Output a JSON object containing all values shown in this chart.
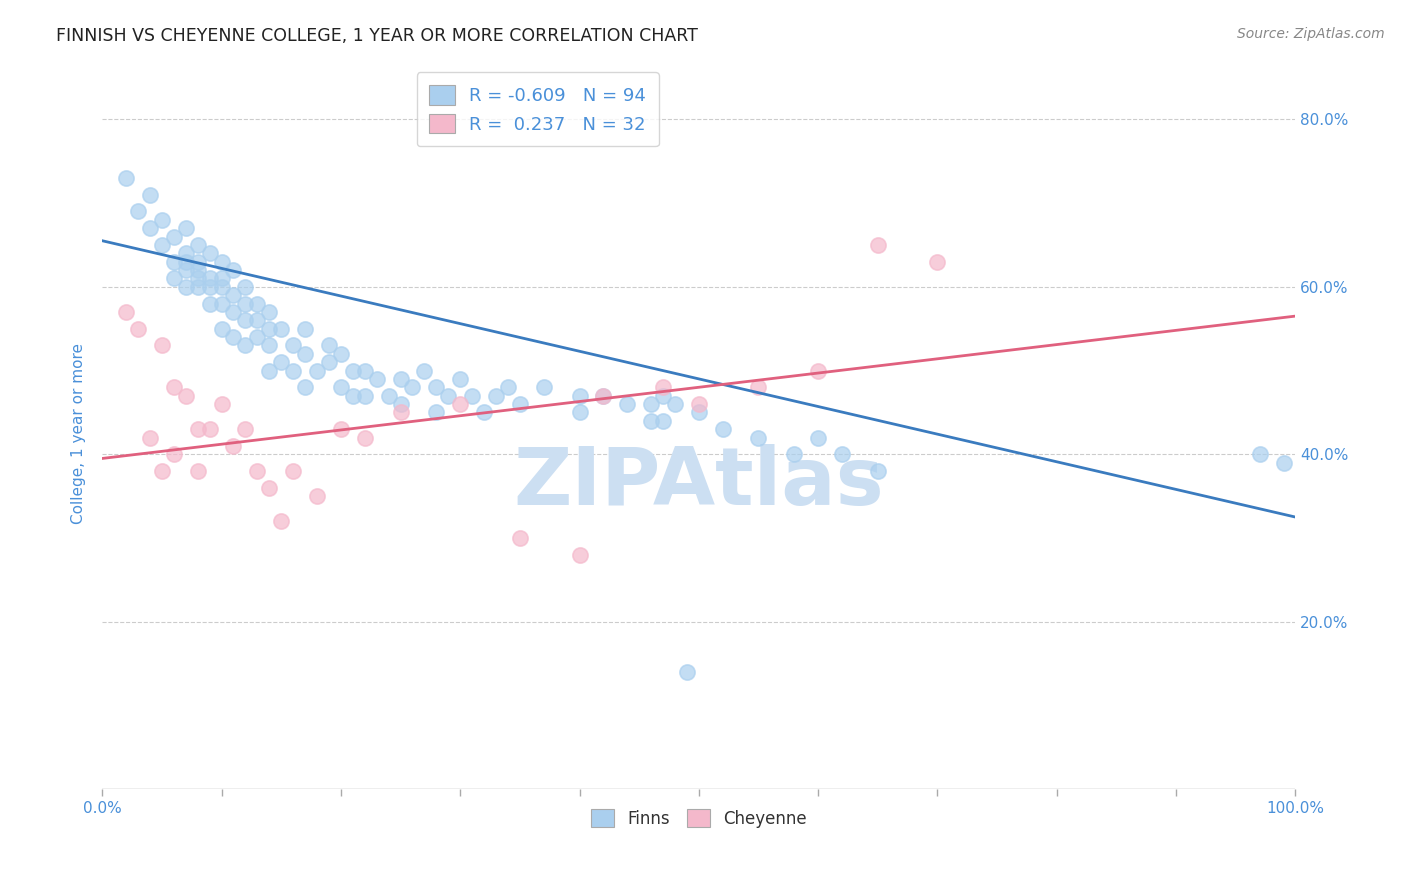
{
  "title": "FINNISH VS CHEYENNE COLLEGE, 1 YEAR OR MORE CORRELATION CHART",
  "source": "Source: ZipAtlas.com",
  "xlabel_ticks": [
    "0.0%",
    "100.0%"
  ],
  "ylabel_ticks": [
    "20.0%",
    "40.0%",
    "60.0%",
    "80.0%"
  ],
  "ylabel": "College, 1 year or more",
  "legend_labels": [
    "Finns",
    "Cheyenne"
  ],
  "finns_R": -0.609,
  "finns_N": 94,
  "cheyenne_R": 0.237,
  "cheyenne_N": 32,
  "finns_color": "#aacfee",
  "cheyenne_color": "#f4b8cb",
  "finns_line_color": "#3a7bbf",
  "cheyenne_line_color": "#e0607e",
  "title_color": "#222222",
  "axis_label_color": "#4a90d9",
  "watermark_color": "#ccdff2",
  "background_color": "#ffffff",
  "grid_color": "#cccccc",
  "finns_x": [
    0.02,
    0.03,
    0.04,
    0.04,
    0.05,
    0.05,
    0.06,
    0.06,
    0.06,
    0.07,
    0.07,
    0.07,
    0.07,
    0.07,
    0.08,
    0.08,
    0.08,
    0.08,
    0.08,
    0.09,
    0.09,
    0.09,
    0.09,
    0.1,
    0.1,
    0.1,
    0.1,
    0.1,
    0.11,
    0.11,
    0.11,
    0.11,
    0.12,
    0.12,
    0.12,
    0.12,
    0.13,
    0.13,
    0.13,
    0.14,
    0.14,
    0.14,
    0.14,
    0.15,
    0.15,
    0.16,
    0.16,
    0.17,
    0.17,
    0.17,
    0.18,
    0.19,
    0.19,
    0.2,
    0.2,
    0.21,
    0.21,
    0.22,
    0.22,
    0.23,
    0.24,
    0.25,
    0.25,
    0.26,
    0.27,
    0.28,
    0.28,
    0.29,
    0.3,
    0.31,
    0.32,
    0.33,
    0.34,
    0.35,
    0.37,
    0.4,
    0.4,
    0.42,
    0.44,
    0.46,
    0.46,
    0.47,
    0.47,
    0.48,
    0.49,
    0.5,
    0.52,
    0.55,
    0.58,
    0.6,
    0.62,
    0.65,
    0.97,
    0.99
  ],
  "finns_y": [
    0.73,
    0.69,
    0.71,
    0.67,
    0.65,
    0.68,
    0.63,
    0.61,
    0.66,
    0.64,
    0.63,
    0.67,
    0.62,
    0.6,
    0.63,
    0.61,
    0.6,
    0.65,
    0.62,
    0.61,
    0.64,
    0.6,
    0.58,
    0.63,
    0.61,
    0.58,
    0.55,
    0.6,
    0.62,
    0.59,
    0.57,
    0.54,
    0.6,
    0.58,
    0.56,
    0.53,
    0.56,
    0.54,
    0.58,
    0.55,
    0.53,
    0.57,
    0.5,
    0.55,
    0.51,
    0.53,
    0.5,
    0.52,
    0.55,
    0.48,
    0.5,
    0.51,
    0.53,
    0.52,
    0.48,
    0.5,
    0.47,
    0.5,
    0.47,
    0.49,
    0.47,
    0.49,
    0.46,
    0.48,
    0.5,
    0.48,
    0.45,
    0.47,
    0.49,
    0.47,
    0.45,
    0.47,
    0.48,
    0.46,
    0.48,
    0.47,
    0.45,
    0.47,
    0.46,
    0.46,
    0.44,
    0.47,
    0.44,
    0.46,
    0.14,
    0.45,
    0.43,
    0.42,
    0.4,
    0.42,
    0.4,
    0.38,
    0.4,
    0.39
  ],
  "cheyenne_x": [
    0.02,
    0.03,
    0.04,
    0.05,
    0.05,
    0.06,
    0.06,
    0.07,
    0.08,
    0.08,
    0.09,
    0.1,
    0.11,
    0.12,
    0.13,
    0.14,
    0.15,
    0.16,
    0.18,
    0.2,
    0.22,
    0.25,
    0.3,
    0.35,
    0.4,
    0.42,
    0.47,
    0.5,
    0.55,
    0.6,
    0.65,
    0.7
  ],
  "cheyenne_y": [
    0.57,
    0.55,
    0.42,
    0.53,
    0.38,
    0.48,
    0.4,
    0.47,
    0.43,
    0.38,
    0.43,
    0.46,
    0.41,
    0.43,
    0.38,
    0.36,
    0.32,
    0.38,
    0.35,
    0.43,
    0.42,
    0.45,
    0.46,
    0.3,
    0.28,
    0.47,
    0.48,
    0.46,
    0.48,
    0.5,
    0.65,
    0.63
  ],
  "xlim": [
    0.0,
    1.0
  ],
  "ylim": [
    0.0,
    0.85
  ],
  "finns_trendline_x": [
    0.0,
    1.0
  ],
  "finns_trendline_y": [
    0.655,
    0.325
  ],
  "cheyenne_trendline_x": [
    0.0,
    1.0
  ],
  "cheyenne_trendline_y": [
    0.395,
    0.565
  ]
}
